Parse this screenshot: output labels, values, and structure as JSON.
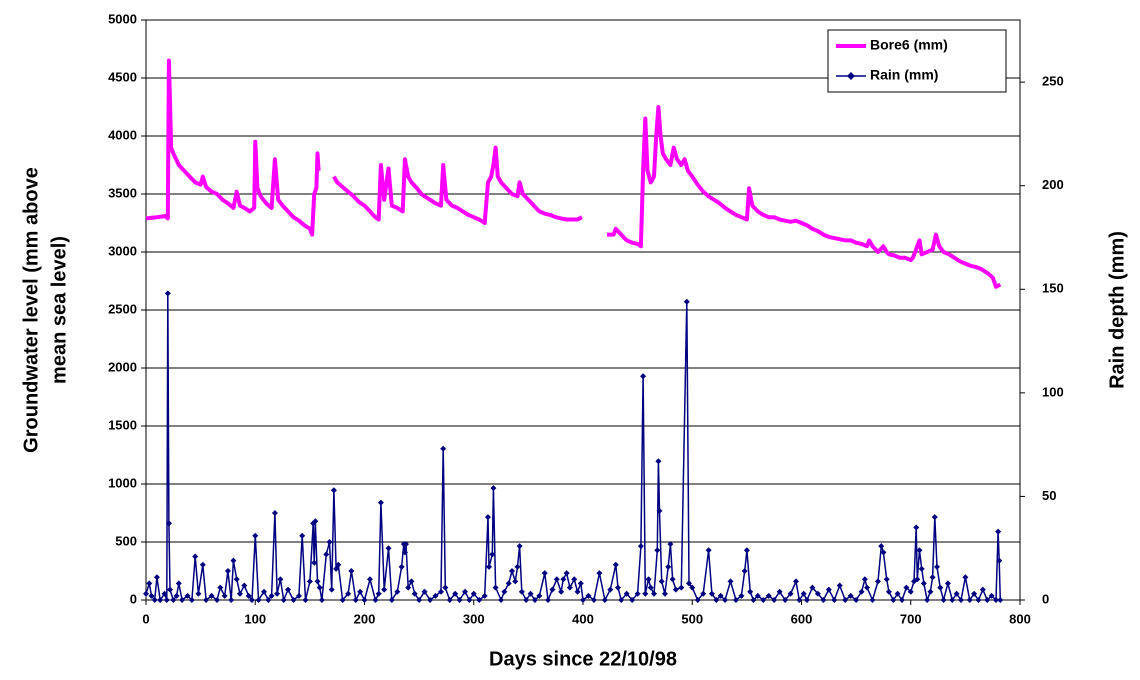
{
  "chart_data": {
    "type": "line",
    "xlabel": "Days since 22/10/98",
    "ylabel": [
      "Groundwater level (mm above",
      "mean sea level)"
    ],
    "y2label": "Rain depth (mm)",
    "xlim": [
      0,
      800
    ],
    "xticks": [
      0,
      100,
      200,
      300,
      400,
      500,
      600,
      700,
      800
    ],
    "ylim": [
      0,
      5000
    ],
    "yticks": [
      0,
      500,
      1000,
      1500,
      2000,
      2500,
      3000,
      3500,
      4000,
      4500,
      5000
    ],
    "y2lim": [
      0,
      280
    ],
    "y2ticks": [
      0,
      50,
      100,
      150,
      200,
      250
    ],
    "grid": true,
    "legend": "top-right",
    "series": [
      {
        "name": "Bore6 (mm)",
        "color": "#ff00ff",
        "x": [
          0,
          10,
          18,
          20,
          21,
          22,
          23,
          25,
          30,
          35,
          40,
          45,
          50,
          52,
          55,
          60,
          65,
          70,
          75,
          80,
          83,
          86,
          90,
          95,
          99,
          100,
          102,
          105,
          110,
          115,
          118,
          121,
          125,
          130,
          135,
          140,
          145,
          150,
          152,
          154,
          156,
          157,
          158,
          165,
          172,
          175,
          180,
          185,
          190,
          195,
          200,
          205,
          210,
          213,
          215,
          218,
          222,
          225,
          230,
          235,
          237,
          240,
          243,
          248,
          252,
          255,
          260,
          265,
          270,
          272,
          275,
          280,
          285,
          290,
          295,
          300,
          305,
          310,
          313,
          316,
          318,
          320,
          322,
          325,
          330,
          335,
          340,
          342,
          345,
          350,
          355,
          360,
          365,
          370,
          375,
          380,
          385,
          390,
          395,
          399,
          410,
          422,
          428,
          430,
          435,
          440,
          445,
          450,
          453,
          455,
          457,
          459,
          462,
          465,
          467,
          469,
          471,
          473,
          476,
          480,
          483,
          486,
          490,
          493,
          496,
          500,
          505,
          510,
          515,
          520,
          525,
          530,
          535,
          540,
          545,
          550,
          552,
          555,
          560,
          565,
          570,
          575,
          580,
          585,
          590,
          595,
          600,
          605,
          610,
          615,
          620,
          625,
          630,
          635,
          640,
          645,
          650,
          655,
          660,
          662,
          665,
          670,
          675,
          678,
          680,
          685,
          690,
          695,
          700,
          702,
          706,
          708,
          710,
          715,
          720,
          723,
          726,
          730,
          735,
          740,
          745,
          750,
          755,
          760,
          765,
          770,
          775,
          778,
          782
        ],
        "values": [
          3290,
          3300,
          3310,
          3290,
          4650,
          4300,
          3900,
          3850,
          3750,
          3700,
          3650,
          3600,
          3580,
          3650,
          3560,
          3520,
          3500,
          3450,
          3420,
          3380,
          3520,
          3400,
          3380,
          3350,
          3380,
          3950,
          3550,
          3480,
          3420,
          3380,
          3800,
          3450,
          3400,
          3350,
          3300,
          3270,
          3230,
          3200,
          3150,
          3500,
          3550,
          3850,
          3700,
          null,
          3650,
          3600,
          3560,
          3520,
          3480,
          3430,
          3400,
          3350,
          3300,
          3280,
          3750,
          3450,
          3720,
          3400,
          3380,
          3350,
          3800,
          3650,
          3600,
          3550,
          3500,
          3480,
          3450,
          3420,
          3400,
          3750,
          3450,
          3400,
          3380,
          3350,
          3320,
          3300,
          3280,
          3250,
          3600,
          3650,
          3750,
          3900,
          3650,
          3600,
          3550,
          3500,
          3480,
          3600,
          3500,
          3450,
          3400,
          3350,
          3330,
          3320,
          3300,
          3290,
          3280,
          3280,
          3280,
          3300,
          null,
          3150,
          3150,
          3200,
          3150,
          3100,
          3080,
          3070,
          3050,
          3700,
          4150,
          3700,
          3600,
          3650,
          4000,
          4250,
          4000,
          3850,
          3800,
          3750,
          3900,
          3800,
          3750,
          3800,
          3700,
          3650,
          3580,
          3520,
          3480,
          3450,
          3420,
          3380,
          3350,
          3320,
          3300,
          3280,
          3550,
          3400,
          3350,
          3320,
          3300,
          3300,
          3280,
          3270,
          3260,
          3270,
          3250,
          3230,
          3200,
          3180,
          3150,
          3130,
          3120,
          3110,
          3100,
          3100,
          3080,
          3070,
          3050,
          3100,
          3050,
          3000,
          3050,
          3000,
          2980,
          2970,
          2950,
          2950,
          2930,
          2950,
          3050,
          3100,
          2980,
          3000,
          3020,
          3150,
          3050,
          3000,
          2980,
          2950,
          2920,
          2900,
          2880,
          2870,
          2850,
          2820,
          2780,
          2700,
          2720
        ]
      },
      {
        "name": "Rain (mm)",
        "color": "#000080",
        "axis": "y2",
        "x": [
          0,
          3,
          5,
          8,
          10,
          13,
          17,
          19,
          20,
          21,
          22,
          25,
          28,
          30,
          33,
          38,
          42,
          45,
          48,
          52,
          55,
          60,
          65,
          68,
          72,
          75,
          78,
          80,
          83,
          86,
          90,
          94,
          97,
          100,
          103,
          108,
          112,
          115,
          118,
          120,
          123,
          126,
          130,
          135,
          140,
          143,
          146,
          150,
          153,
          154,
          155,
          157,
          159,
          161,
          165,
          168,
          170,
          172,
          174,
          176,
          180,
          185,
          188,
          192,
          196,
          200,
          205,
          210,
          213,
          215,
          218,
          222,
          225,
          230,
          234,
          236,
          237,
          238,
          240,
          243,
          246,
          250,
          255,
          260,
          265,
          270,
          272,
          274,
          278,
          283,
          287,
          292,
          296,
          300,
          305,
          310,
          313,
          314,
          317,
          318,
          320,
          325,
          328,
          332,
          335,
          338,
          340,
          342,
          344,
          348,
          352,
          356,
          360,
          365,
          368,
          372,
          376,
          380,
          382,
          385,
          388,
          392,
          395,
          398,
          400,
          405,
          410,
          415,
          420,
          425,
          430,
          432,
          435,
          440,
          445,
          450,
          453,
          455,
          457,
          460,
          462,
          465,
          468,
          469,
          470,
          472,
          475,
          478,
          480,
          482,
          485,
          490,
          495,
          497,
          500,
          505,
          510,
          515,
          518,
          522,
          526,
          530,
          535,
          540,
          545,
          548,
          550,
          553,
          556,
          560,
          565,
          570,
          575,
          580,
          585,
          590,
          595,
          598,
          602,
          605,
          610,
          615,
          620,
          625,
          630,
          635,
          640,
          645,
          650,
          655,
          658,
          660,
          665,
          670,
          673,
          675,
          678,
          680,
          684,
          688,
          692,
          696,
          700,
          703,
          705,
          706,
          708,
          710,
          712,
          715,
          718,
          720,
          722,
          724,
          727,
          730,
          734,
          738,
          742,
          746,
          750,
          754,
          758,
          762,
          766,
          770,
          774,
          778,
          780,
          781,
          782
        ],
        "values": [
          3,
          8,
          2,
          0,
          11,
          0,
          3,
          0,
          148,
          37,
          5,
          0,
          2,
          8,
          0,
          2,
          0,
          21,
          3,
          17,
          0,
          2,
          0,
          6,
          2,
          14,
          0,
          19,
          10,
          3,
          7,
          2,
          0,
          31,
          0,
          4,
          0,
          2,
          42,
          3,
          10,
          0,
          5,
          0,
          2,
          31,
          0,
          9,
          37,
          18,
          38,
          9,
          6,
          0,
          22,
          28,
          5,
          53,
          15,
          17,
          0,
          3,
          14,
          0,
          4,
          0,
          10,
          0,
          3,
          47,
          5,
          25,
          0,
          4,
          16,
          27,
          23,
          27,
          6,
          9,
          3,
          0,
          4,
          0,
          2,
          4,
          73,
          6,
          0,
          3,
          0,
          4,
          0,
          3,
          0,
          2,
          40,
          16,
          22,
          54,
          6,
          0,
          4,
          8,
          14,
          9,
          16,
          26,
          4,
          0,
          3,
          0,
          2,
          13,
          0,
          5,
          10,
          4,
          10,
          13,
          6,
          10,
          4,
          8,
          0,
          2,
          0,
          13,
          0,
          5,
          17,
          6,
          0,
          3,
          0,
          3,
          26,
          108,
          3,
          10,
          6,
          3,
          24,
          67,
          43,
          9,
          3,
          16,
          27,
          10,
          5,
          6,
          144,
          8,
          6,
          0,
          3,
          24,
          3,
          0,
          2,
          0,
          9,
          0,
          2,
          14,
          24,
          4,
          0,
          2,
          0,
          2,
          0,
          4,
          0,
          3,
          9,
          0,
          3,
          0,
          6,
          3,
          0,
          5,
          0,
          7,
          0,
          2,
          0,
          4,
          10,
          6,
          0,
          9,
          26,
          23,
          10,
          4,
          0,
          3,
          0,
          6,
          4,
          9,
          35,
          10,
          24,
          15,
          8,
          0,
          4,
          11,
          40,
          16,
          6,
          0,
          8,
          0,
          3,
          0,
          11,
          0,
          3,
          0,
          5,
          0,
          2,
          0,
          33,
          19,
          0
        ]
      }
    ]
  }
}
